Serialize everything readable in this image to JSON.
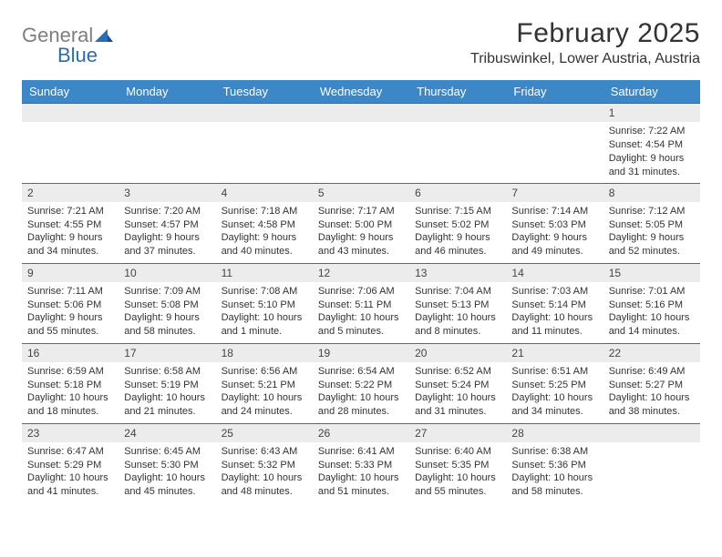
{
  "logo": {
    "part1": "General",
    "part2": "Blue"
  },
  "title": "February 2025",
  "subtitle": "Tribuswinkel, Lower Austria, Austria",
  "day_headers": [
    "Sunday",
    "Monday",
    "Tuesday",
    "Wednesday",
    "Thursday",
    "Friday",
    "Saturday"
  ],
  "colors": {
    "header_bg": "#3b87c8",
    "header_text": "#ffffff",
    "daynum_bg": "#ececec",
    "daynum_border": "#4a6a8a",
    "text": "#333333",
    "logo_gray": "#7e7e7e",
    "logo_blue": "#2b6db5"
  },
  "typography": {
    "title_fontsize": 30,
    "subtitle_fontsize": 16,
    "header_fontsize": 13,
    "daynum_fontsize": 12,
    "cell_fontsize": 11
  },
  "weeks": [
    [
      {
        "day": "",
        "lines": []
      },
      {
        "day": "",
        "lines": []
      },
      {
        "day": "",
        "lines": []
      },
      {
        "day": "",
        "lines": []
      },
      {
        "day": "",
        "lines": []
      },
      {
        "day": "",
        "lines": []
      },
      {
        "day": "1",
        "lines": [
          "Sunrise: 7:22 AM",
          "Sunset: 4:54 PM",
          "Daylight: 9 hours and 31 minutes."
        ]
      }
    ],
    [
      {
        "day": "2",
        "lines": [
          "Sunrise: 7:21 AM",
          "Sunset: 4:55 PM",
          "Daylight: 9 hours and 34 minutes."
        ]
      },
      {
        "day": "3",
        "lines": [
          "Sunrise: 7:20 AM",
          "Sunset: 4:57 PM",
          "Daylight: 9 hours and 37 minutes."
        ]
      },
      {
        "day": "4",
        "lines": [
          "Sunrise: 7:18 AM",
          "Sunset: 4:58 PM",
          "Daylight: 9 hours and 40 minutes."
        ]
      },
      {
        "day": "5",
        "lines": [
          "Sunrise: 7:17 AM",
          "Sunset: 5:00 PM",
          "Daylight: 9 hours and 43 minutes."
        ]
      },
      {
        "day": "6",
        "lines": [
          "Sunrise: 7:15 AM",
          "Sunset: 5:02 PM",
          "Daylight: 9 hours and 46 minutes."
        ]
      },
      {
        "day": "7",
        "lines": [
          "Sunrise: 7:14 AM",
          "Sunset: 5:03 PM",
          "Daylight: 9 hours and 49 minutes."
        ]
      },
      {
        "day": "8",
        "lines": [
          "Sunrise: 7:12 AM",
          "Sunset: 5:05 PM",
          "Daylight: 9 hours and 52 minutes."
        ]
      }
    ],
    [
      {
        "day": "9",
        "lines": [
          "Sunrise: 7:11 AM",
          "Sunset: 5:06 PM",
          "Daylight: 9 hours and 55 minutes."
        ]
      },
      {
        "day": "10",
        "lines": [
          "Sunrise: 7:09 AM",
          "Sunset: 5:08 PM",
          "Daylight: 9 hours and 58 minutes."
        ]
      },
      {
        "day": "11",
        "lines": [
          "Sunrise: 7:08 AM",
          "Sunset: 5:10 PM",
          "Daylight: 10 hours and 1 minute."
        ]
      },
      {
        "day": "12",
        "lines": [
          "Sunrise: 7:06 AM",
          "Sunset: 5:11 PM",
          "Daylight: 10 hours and 5 minutes."
        ]
      },
      {
        "day": "13",
        "lines": [
          "Sunrise: 7:04 AM",
          "Sunset: 5:13 PM",
          "Daylight: 10 hours and 8 minutes."
        ]
      },
      {
        "day": "14",
        "lines": [
          "Sunrise: 7:03 AM",
          "Sunset: 5:14 PM",
          "Daylight: 10 hours and 11 minutes."
        ]
      },
      {
        "day": "15",
        "lines": [
          "Sunrise: 7:01 AM",
          "Sunset: 5:16 PM",
          "Daylight: 10 hours and 14 minutes."
        ]
      }
    ],
    [
      {
        "day": "16",
        "lines": [
          "Sunrise: 6:59 AM",
          "Sunset: 5:18 PM",
          "Daylight: 10 hours and 18 minutes."
        ]
      },
      {
        "day": "17",
        "lines": [
          "Sunrise: 6:58 AM",
          "Sunset: 5:19 PM",
          "Daylight: 10 hours and 21 minutes."
        ]
      },
      {
        "day": "18",
        "lines": [
          "Sunrise: 6:56 AM",
          "Sunset: 5:21 PM",
          "Daylight: 10 hours and 24 minutes."
        ]
      },
      {
        "day": "19",
        "lines": [
          "Sunrise: 6:54 AM",
          "Sunset: 5:22 PM",
          "Daylight: 10 hours and 28 minutes."
        ]
      },
      {
        "day": "20",
        "lines": [
          "Sunrise: 6:52 AM",
          "Sunset: 5:24 PM",
          "Daylight: 10 hours and 31 minutes."
        ]
      },
      {
        "day": "21",
        "lines": [
          "Sunrise: 6:51 AM",
          "Sunset: 5:25 PM",
          "Daylight: 10 hours and 34 minutes."
        ]
      },
      {
        "day": "22",
        "lines": [
          "Sunrise: 6:49 AM",
          "Sunset: 5:27 PM",
          "Daylight: 10 hours and 38 minutes."
        ]
      }
    ],
    [
      {
        "day": "23",
        "lines": [
          "Sunrise: 6:47 AM",
          "Sunset: 5:29 PM",
          "Daylight: 10 hours and 41 minutes."
        ]
      },
      {
        "day": "24",
        "lines": [
          "Sunrise: 6:45 AM",
          "Sunset: 5:30 PM",
          "Daylight: 10 hours and 45 minutes."
        ]
      },
      {
        "day": "25",
        "lines": [
          "Sunrise: 6:43 AM",
          "Sunset: 5:32 PM",
          "Daylight: 10 hours and 48 minutes."
        ]
      },
      {
        "day": "26",
        "lines": [
          "Sunrise: 6:41 AM",
          "Sunset: 5:33 PM",
          "Daylight: 10 hours and 51 minutes."
        ]
      },
      {
        "day": "27",
        "lines": [
          "Sunrise: 6:40 AM",
          "Sunset: 5:35 PM",
          "Daylight: 10 hours and 55 minutes."
        ]
      },
      {
        "day": "28",
        "lines": [
          "Sunrise: 6:38 AM",
          "Sunset: 5:36 PM",
          "Daylight: 10 hours and 58 minutes."
        ]
      },
      {
        "day": "",
        "lines": []
      }
    ]
  ]
}
